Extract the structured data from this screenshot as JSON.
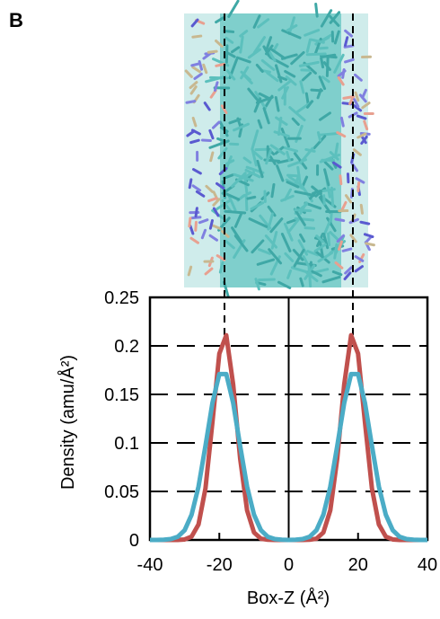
{
  "panel_label": "B",
  "chart_data": {
    "type": "line",
    "x_label": "Box-Z (Å²)",
    "y_label": "Density (amu/Å²)",
    "x": [
      -40,
      -38,
      -36,
      -34,
      -32,
      -30,
      -28,
      -26,
      -24,
      -22,
      -20,
      -18,
      -16,
      -14,
      -12,
      -10,
      -8,
      -6,
      -4,
      -2,
      0,
      2,
      4,
      6,
      8,
      10,
      12,
      14,
      16,
      18,
      20,
      22,
      24,
      26,
      28,
      30,
      32,
      34,
      36,
      38,
      40
    ],
    "series": [
      {
        "color": "#c0504d",
        "values": [
          0,
          0,
          0,
          0,
          0,
          0.0005,
          0.0034,
          0.016,
          0.053,
          0.121,
          0.192,
          0.211,
          0.16,
          0.084,
          0.0306,
          0.0077,
          0.0013,
          0.0002,
          0,
          0,
          0,
          0,
          0,
          0.0002,
          0.0013,
          0.0077,
          0.0306,
          0.084,
          0.16,
          0.211,
          0.192,
          0.121,
          0.053,
          0.016,
          0.0034,
          0.0005,
          0,
          0,
          0,
          0,
          0
        ]
      },
      {
        "color": "#4bacc6",
        "values": [
          0,
          0,
          0.0002,
          0.0009,
          0.0032,
          0.01,
          0.026,
          0.055,
          0.097,
          0.141,
          0.171,
          0.171,
          0.141,
          0.097,
          0.055,
          0.026,
          0.01,
          0.0032,
          0.0009,
          0.0002,
          0,
          0.0002,
          0.0009,
          0.0032,
          0.01,
          0.026,
          0.055,
          0.097,
          0.141,
          0.171,
          0.171,
          0.141,
          0.097,
          0.055,
          0.026,
          0.01,
          0.0032,
          0.0009,
          0.0002,
          0,
          0
        ]
      }
    ],
    "xlim": [
      -40,
      40
    ],
    "xticks": [
      -40,
      -20,
      0,
      20,
      40
    ],
    "ylim": [
      0,
      0.25
    ],
    "yticks": [
      0,
      0.05,
      0.1,
      0.15,
      0.2,
      0.25
    ],
    "grid": true
  }
}
